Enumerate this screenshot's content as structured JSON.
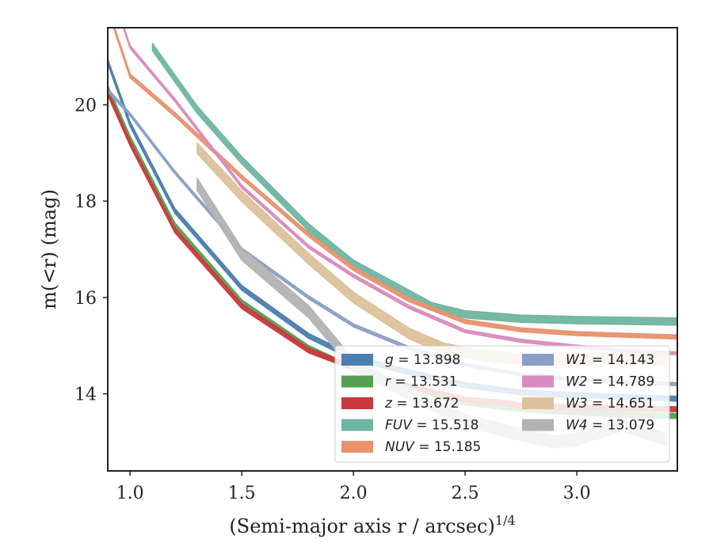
{
  "chart_data": {
    "type": "line",
    "xlabel": "(Semi-major axis r / arcsec)",
    "xlabel_exponent": "1/4",
    "ylabel": "m(<r) (mag)",
    "xlim": [
      0.9,
      3.45
    ],
    "ylim": [
      21.6,
      12.4
    ],
    "y_inverted": true,
    "xticks": [
      1.0,
      1.5,
      2.0,
      2.5,
      3.0
    ],
    "xtick_labels": [
      "1.0",
      "1.5",
      "2.0",
      "2.5",
      "3.0"
    ],
    "yticks": [
      14,
      16,
      18,
      20
    ],
    "ytick_labels": [
      "14",
      "16",
      "18",
      "20"
    ],
    "grid": false,
    "legend_position": "lower-right",
    "legend_columns": 2,
    "series": [
      {
        "name": "g",
        "legend": "g = 13.898",
        "color": "#4c7faf",
        "band_width": 0.1,
        "x": [
          0.9,
          1.0,
          1.2,
          1.5,
          1.8,
          2.0,
          2.25,
          2.5,
          2.75,
          3.0,
          3.2,
          3.45
        ],
        "y": [
          20.9,
          19.6,
          17.8,
          16.2,
          15.2,
          14.75,
          14.45,
          14.18,
          14.03,
          13.97,
          13.94,
          13.9
        ]
      },
      {
        "name": "r",
        "legend": "r = 13.531",
        "color": "#55a051",
        "band_width": 0.1,
        "x": [
          0.9,
          1.0,
          1.2,
          1.5,
          1.8,
          2.0,
          2.25,
          2.5,
          2.75,
          3.0,
          3.2,
          3.45
        ],
        "y": [
          20.35,
          19.3,
          17.5,
          15.9,
          14.95,
          14.52,
          14.12,
          13.82,
          13.68,
          13.61,
          13.57,
          13.54
        ]
      },
      {
        "name": "z",
        "legend": "z = 13.672",
        "color": "#c9393c",
        "band_width": 0.1,
        "x": [
          0.9,
          1.0,
          1.2,
          1.5,
          1.8,
          2.0,
          2.25,
          2.5,
          2.7,
          2.75,
          3.0,
          3.2,
          3.45
        ],
        "y": [
          20.25,
          19.2,
          17.4,
          15.82,
          14.9,
          14.55,
          14.15,
          13.88,
          13.8,
          13.75,
          13.72,
          13.7,
          13.68
        ]
      },
      {
        "name": "FUV",
        "legend": "FUV = 15.518",
        "color": "#6fb5a1",
        "band_width": 0.15,
        "x": [
          1.1,
          1.3,
          1.5,
          1.8,
          2.0,
          2.2,
          2.35,
          2.5,
          2.75,
          3.0,
          3.45
        ],
        "y": [
          21.2,
          19.9,
          18.85,
          17.45,
          16.7,
          16.2,
          15.82,
          15.65,
          15.56,
          15.53,
          15.5
        ]
      },
      {
        "name": "NUV",
        "legend": "NUV = 15.185",
        "color": "#e8926e",
        "band_width": 0.08,
        "x": [
          0.9,
          1.0,
          1.2,
          1.5,
          1.8,
          2.0,
          2.25,
          2.5,
          2.75,
          3.0,
          3.45
        ],
        "y": [
          22.0,
          20.6,
          19.8,
          18.5,
          17.3,
          16.6,
          15.95,
          15.5,
          15.33,
          15.25,
          15.18
        ]
      },
      {
        "name": "W1",
        "legend": "W1 = 14.143",
        "color": "#8c9fc5",
        "band_width": 0.06,
        "x": [
          0.9,
          1.0,
          1.2,
          1.5,
          1.8,
          2.0,
          2.25,
          2.5,
          2.75,
          3.0,
          3.2,
          3.45
        ],
        "y": [
          20.3,
          19.8,
          18.6,
          17.0,
          16.0,
          15.42,
          14.95,
          14.6,
          14.4,
          14.3,
          14.25,
          14.2
        ]
      },
      {
        "name": "W2",
        "legend": "W2 = 14.789",
        "color": "#d98cc0",
        "band_width": 0.06,
        "x": [
          0.95,
          1.0,
          1.2,
          1.5,
          1.8,
          2.0,
          2.25,
          2.5,
          2.75,
          3.0,
          3.2,
          3.45
        ],
        "y": [
          21.9,
          21.2,
          20.1,
          18.3,
          17.05,
          16.45,
          15.8,
          15.3,
          15.1,
          14.98,
          14.9,
          14.84
        ]
      },
      {
        "name": "W3",
        "legend": "W3 = 14.651",
        "color": "#dcc19a",
        "band_width": 0.22,
        "x": [
          1.3,
          1.5,
          1.8,
          2.0,
          2.25,
          2.4,
          2.5,
          2.75,
          3.0,
          3.1,
          3.2,
          3.4
        ],
        "y": [
          19.1,
          18.1,
          16.8,
          16.0,
          15.25,
          14.95,
          14.85,
          14.72,
          14.7,
          14.75,
          14.72,
          14.72
        ]
      },
      {
        "name": "W4",
        "legend": "W4 = 13.079",
        "color": "#b3b3b3",
        "band_width": 0.25,
        "x": [
          1.3,
          1.5,
          1.8,
          2.0,
          2.25,
          2.5,
          2.75,
          2.9,
          3.0,
          3.1,
          3.2,
          3.3,
          3.4
        ],
        "y": [
          18.35,
          16.9,
          15.7,
          14.6,
          14.0,
          13.45,
          13.15,
          13.0,
          13.05,
          13.2,
          13.35,
          13.2,
          13.05
        ]
      }
    ]
  }
}
